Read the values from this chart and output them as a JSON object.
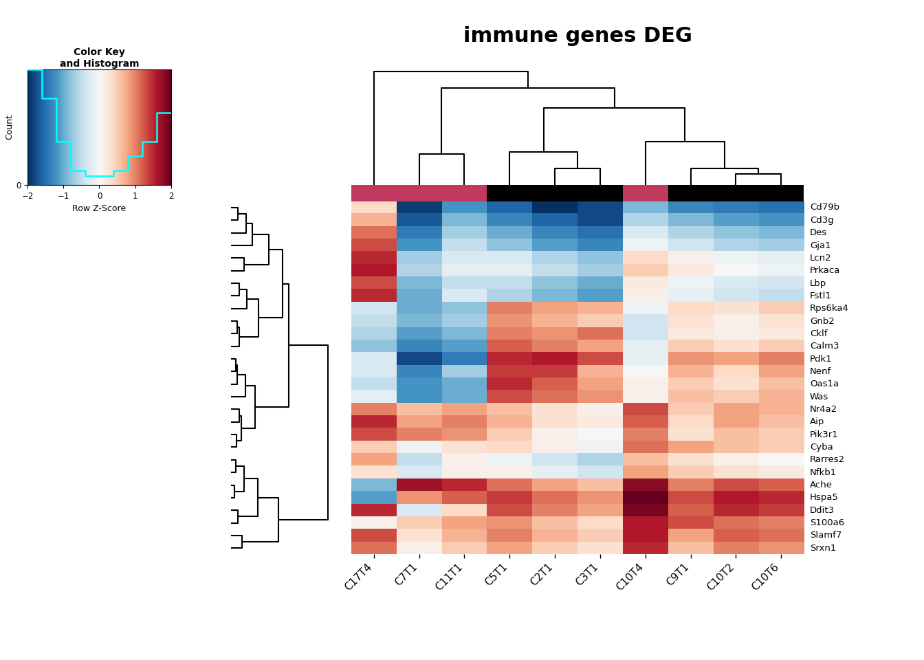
{
  "title": "immune genes DEG",
  "genes": [
    "Oas1a",
    "Pdk1",
    "Rps6ka4",
    "Was",
    "Cklf",
    "Nenf",
    "Calm3",
    "Gnb2",
    "Aip",
    "Pik3r1",
    "Slamf7",
    "Srxn1",
    "Ddit3",
    "Nr4a2",
    "Lcn2",
    "Lbp",
    "Prkaca",
    "Des",
    "Gja1",
    "Fstl1",
    "Rarres2",
    "Ache",
    "Cd79b",
    "Cyba",
    "S100a6",
    "Cd3g",
    "Nfkb1",
    "Hspa5"
  ],
  "samples": [
    "C9T1",
    "C2T1",
    "C3T1",
    "C5T1",
    "C10T2",
    "C10T6",
    "C10T4",
    "C17T4",
    "C7T1",
    "C11T1"
  ],
  "group_colors": [
    "#000000",
    "#000000",
    "#000000",
    "#000000",
    "#000000",
    "#000000",
    "#C1395E",
    "#C1395E",
    "#C1395E",
    "#C1395E"
  ],
  "vmin": -2,
  "vmax": 2,
  "heatmap_data": [
    [
      0.5,
      1.2,
      0.8,
      1.5,
      0.3,
      0.6,
      0.1,
      -0.5,
      -1.2,
      -1.0
    ],
    [
      0.9,
      1.6,
      1.3,
      1.5,
      0.8,
      1.0,
      -0.2,
      -0.3,
      -1.8,
      -1.4
    ],
    [
      0.4,
      0.8,
      0.7,
      1.0,
      0.3,
      0.5,
      -0.1,
      -0.4,
      -1.0,
      -0.8
    ],
    [
      0.6,
      1.1,
      0.9,
      1.3,
      0.5,
      0.7,
      0.1,
      -0.2,
      -1.2,
      -1.0
    ],
    [
      0.2,
      0.9,
      1.1,
      1.0,
      0.1,
      0.2,
      -0.4,
      -0.6,
      -1.1,
      -0.9
    ],
    [
      0.7,
      1.4,
      0.7,
      1.4,
      0.4,
      0.8,
      0.0,
      -0.3,
      -1.3,
      -0.7
    ],
    [
      0.5,
      1.0,
      0.8,
      1.2,
      0.3,
      0.5,
      -0.2,
      -0.8,
      -1.3,
      -1.1
    ],
    [
      0.3,
      0.7,
      0.5,
      0.9,
      0.1,
      0.3,
      -0.4,
      -0.5,
      -0.9,
      -0.7
    ],
    [
      0.4,
      0.3,
      0.2,
      0.7,
      0.8,
      0.6,
      1.2,
      1.5,
      0.8,
      1.0
    ],
    [
      0.3,
      0.1,
      0.0,
      0.5,
      0.6,
      0.5,
      1.0,
      1.3,
      1.0,
      0.9
    ],
    [
      0.8,
      0.7,
      0.5,
      1.0,
      1.2,
      1.1,
      1.6,
      1.3,
      0.3,
      0.7
    ],
    [
      0.6,
      0.5,
      0.3,
      0.8,
      1.0,
      0.9,
      1.5,
      1.1,
      0.1,
      0.5
    ],
    [
      1.2,
      1.0,
      0.8,
      1.3,
      1.5,
      1.4,
      1.9,
      1.5,
      -0.3,
      0.4
    ],
    [
      0.5,
      0.3,
      0.1,
      0.6,
      0.8,
      0.7,
      1.3,
      1.0,
      0.6,
      0.8
    ],
    [
      0.1,
      -0.6,
      -0.8,
      -0.3,
      -0.1,
      -0.2,
      0.4,
      1.5,
      -0.7,
      -0.3
    ],
    [
      -0.1,
      -0.8,
      -1.0,
      -0.5,
      -0.3,
      -0.4,
      0.2,
      1.3,
      -0.9,
      -0.5
    ],
    [
      0.2,
      -0.5,
      -0.7,
      -0.2,
      0.0,
      -0.1,
      0.5,
      1.6,
      -0.6,
      -0.2
    ],
    [
      -0.6,
      -1.3,
      -1.5,
      -1.0,
      -0.8,
      -0.9,
      -0.3,
      1.1,
      -1.4,
      -0.7
    ],
    [
      -0.4,
      -1.1,
      -1.3,
      -0.8,
      -0.6,
      -0.7,
      -0.1,
      1.3,
      -1.2,
      -0.5
    ],
    [
      -0.2,
      -0.9,
      -1.1,
      -0.6,
      -0.4,
      -0.5,
      0.1,
      1.5,
      -1.0,
      -0.3
    ],
    [
      0.3,
      -0.4,
      -0.6,
      -0.1,
      0.1,
      0.0,
      0.6,
      0.8,
      -0.5,
      0.1
    ],
    [
      1.0,
      0.8,
      0.6,
      1.1,
      1.3,
      1.2,
      1.8,
      -0.9,
      1.7,
      1.5
    ],
    [
      -1.3,
      -2.0,
      -1.8,
      -1.6,
      -1.4,
      -1.5,
      -0.9,
      0.4,
      -1.9,
      -1.2
    ],
    [
      0.8,
      0.1,
      -0.1,
      0.4,
      0.6,
      0.5,
      1.1,
      0.5,
      -0.1,
      0.3
    ],
    [
      1.3,
      0.6,
      0.4,
      0.9,
      1.1,
      1.0,
      1.6,
      0.1,
      0.5,
      0.8
    ],
    [
      -0.9,
      -1.6,
      -1.8,
      -1.3,
      -1.1,
      -1.2,
      -0.6,
      0.7,
      -1.7,
      -0.9
    ],
    [
      0.5,
      -0.2,
      -0.4,
      0.1,
      0.3,
      0.2,
      0.8,
      0.3,
      -0.3,
      0.1
    ],
    [
      1.3,
      1.1,
      0.9,
      1.4,
      1.6,
      1.5,
      2.0,
      -1.1,
      0.9,
      1.2
    ]
  ],
  "colormap_stops": [
    "#053061",
    "#2166ac",
    "#4393c3",
    "#92c5de",
    "#d1e5f0",
    "#f7f7f7",
    "#fddbc7",
    "#f4a582",
    "#d6604d",
    "#b2182b",
    "#67001f"
  ],
  "hist_steps": [
    4,
    3,
    1.5,
    0.5,
    0.3,
    0.3,
    0.5,
    1.0,
    1.5,
    2.5,
    3.5
  ],
  "hist_x_bins": [
    -2.0,
    -1.6,
    -1.2,
    -0.8,
    -0.4,
    0.0,
    0.4,
    0.8,
    1.2,
    1.6,
    2.0
  ]
}
